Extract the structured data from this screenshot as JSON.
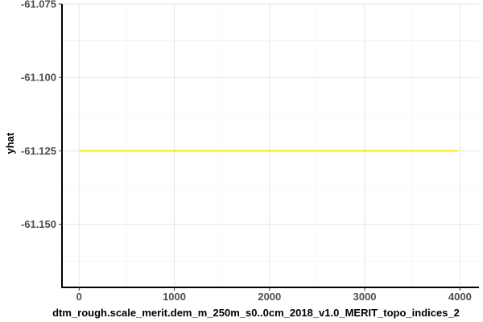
{
  "chart_data": {
    "type": "line",
    "xlabel": "dtm_rough.scale_merit.dem_m_250m_s0..0cm_2018_v1.0_MERIT_topo_indices_2",
    "ylabel": "yhat",
    "xlim": [
      -180,
      4200
    ],
    "ylim": [
      -61.1715,
      -61.075
    ],
    "x_ticks": [
      0,
      1000,
      2000,
      3000,
      4000
    ],
    "x_tick_labels": [
      "0",
      "1000",
      "2000",
      "3000",
      "4000"
    ],
    "y_ticks": [
      -61.075,
      -61.1,
      -61.125,
      -61.15
    ],
    "y_tick_labels": [
      "-61.075",
      "-61.100",
      "-61.125",
      "-61.150"
    ],
    "grid": true,
    "series": [
      {
        "x": [
          0,
          1000,
          2000,
          3000,
          3980
        ],
        "y": [
          -61.125,
          -61.125,
          -61.125,
          -61.125,
          -61.125
        ],
        "color": "#FFE600"
      }
    ]
  }
}
